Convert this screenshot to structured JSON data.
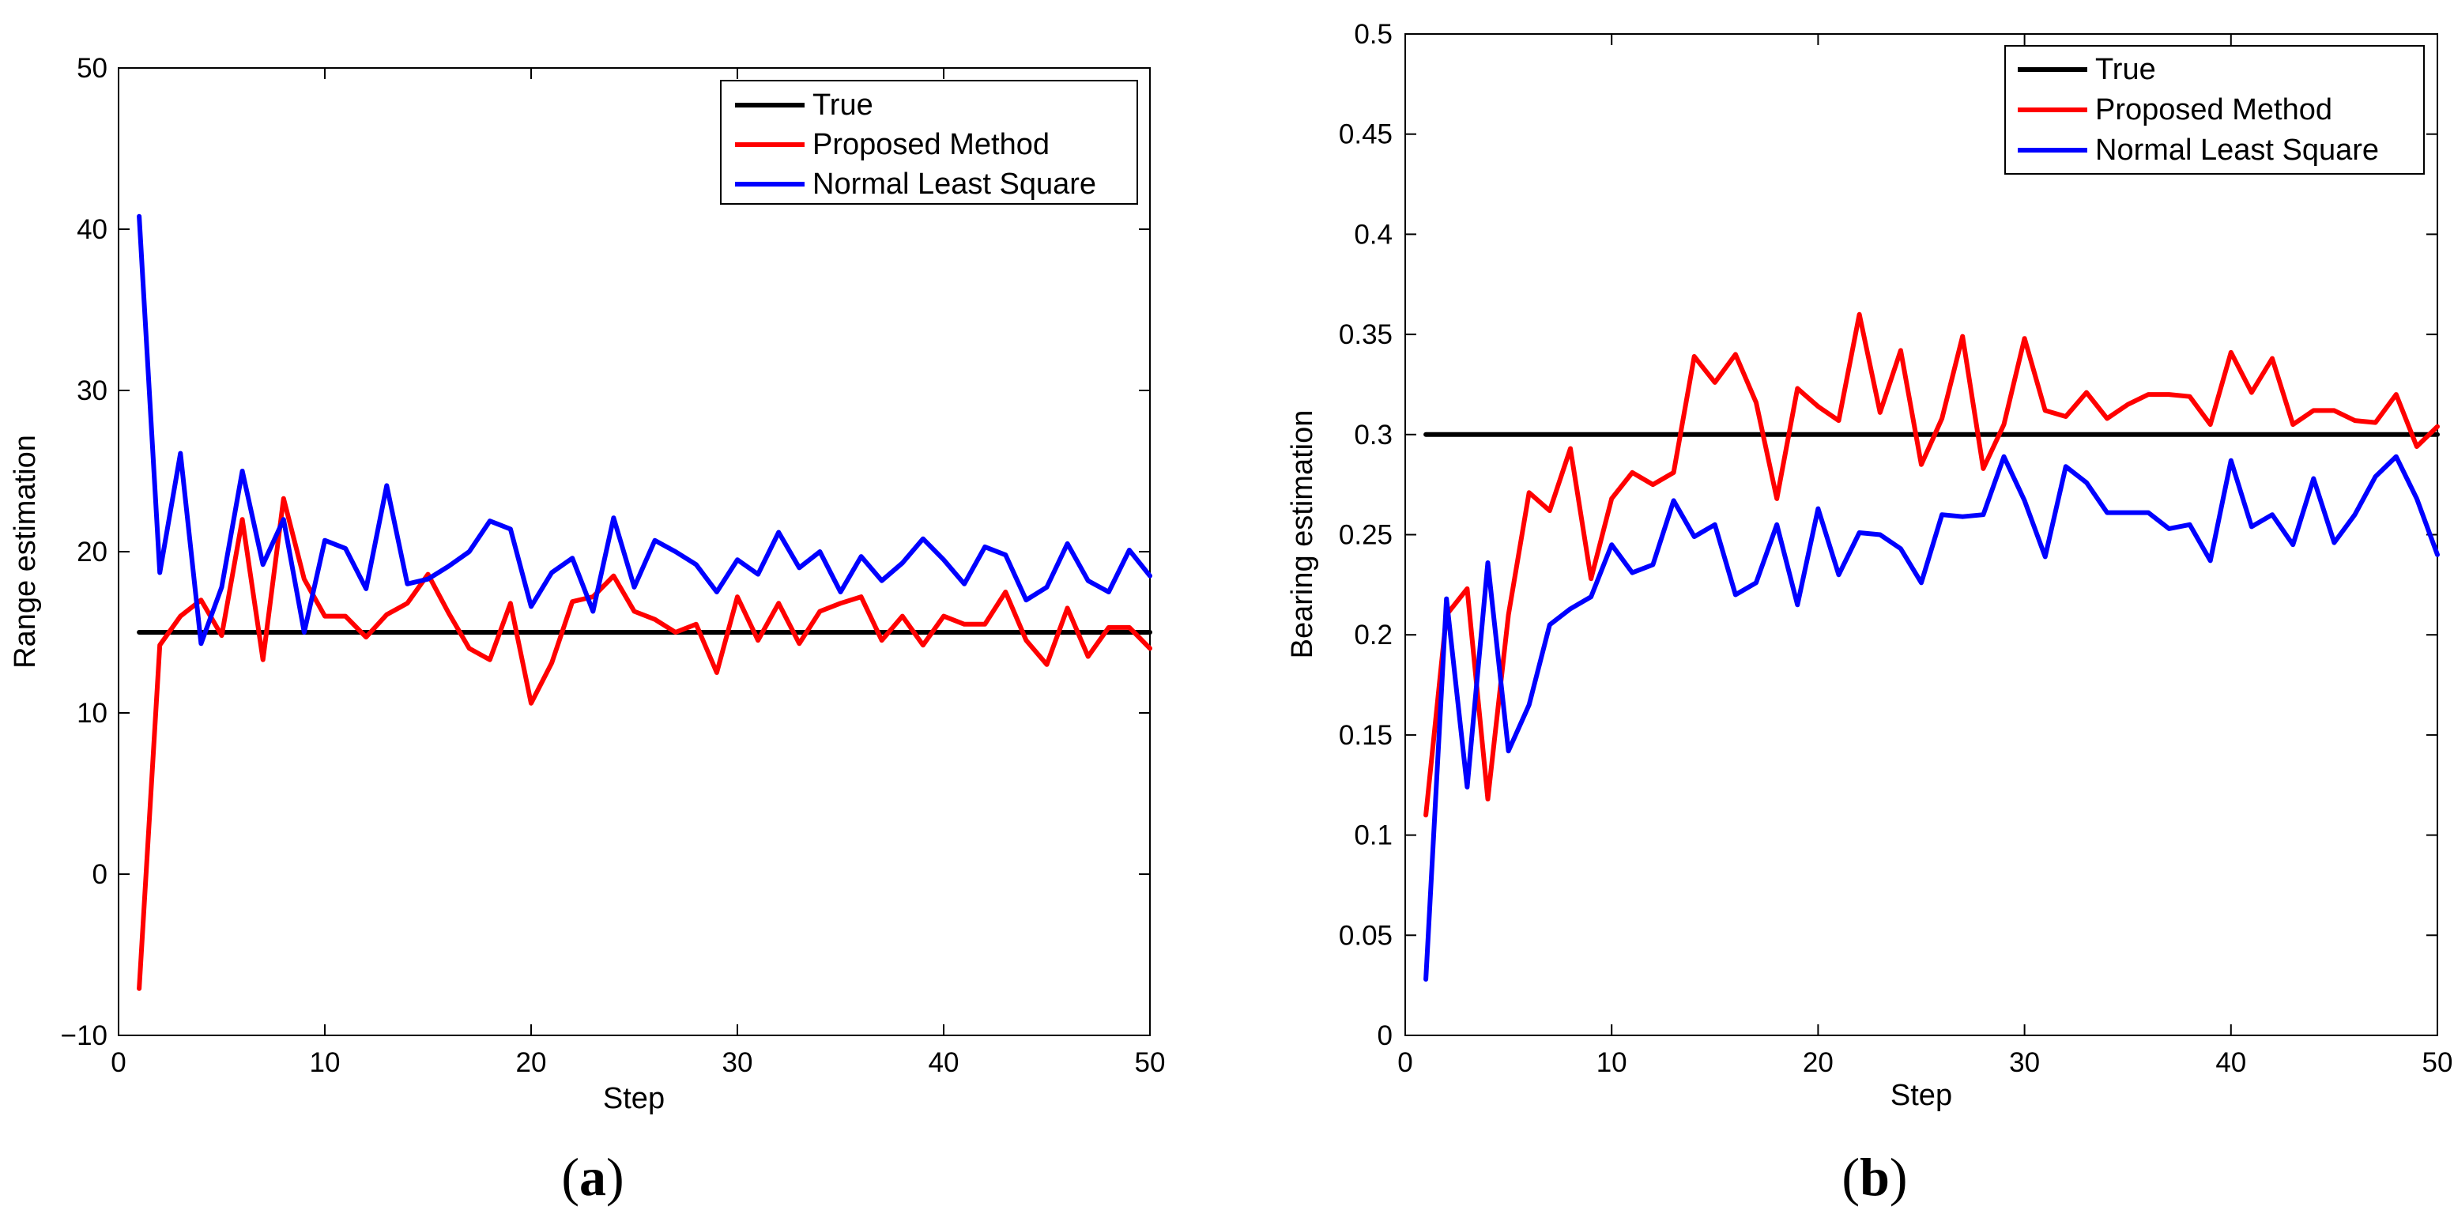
{
  "legend": {
    "true_label": "True",
    "proposed_label": "Proposed Method",
    "nls_label": "Normal Least Square"
  },
  "colors": {
    "true": "#000000",
    "proposed": "#ff0000",
    "nls": "#0000ff"
  },
  "chart_data": [
    {
      "type": "line",
      "panel_label": "a",
      "xlabel": "Step",
      "ylabel": "Range estimation",
      "xlim": [
        0,
        50
      ],
      "ylim": [
        -10,
        50
      ],
      "xticks": [
        0,
        10,
        20,
        30,
        40,
        50
      ],
      "yticks": [
        -10,
        0,
        10,
        20,
        30,
        40,
        50
      ],
      "ytick_labels": [
        "−10",
        "0",
        "10",
        "20",
        "30",
        "40",
        "50"
      ],
      "legend_position": "top-right",
      "x": [
        1,
        2,
        3,
        4,
        5,
        6,
        7,
        8,
        9,
        10,
        11,
        12,
        13,
        14,
        15,
        16,
        17,
        18,
        19,
        20,
        21,
        22,
        23,
        24,
        25,
        26,
        27,
        28,
        29,
        30,
        31,
        32,
        33,
        34,
        35,
        36,
        37,
        38,
        39,
        40,
        41,
        42,
        43,
        44,
        45,
        46,
        47,
        48,
        49,
        50
      ],
      "series": [
        {
          "name": "True",
          "color_key": "true",
          "values": [
            15,
            15,
            15,
            15,
            15,
            15,
            15,
            15,
            15,
            15,
            15,
            15,
            15,
            15,
            15,
            15,
            15,
            15,
            15,
            15,
            15,
            15,
            15,
            15,
            15,
            15,
            15,
            15,
            15,
            15,
            15,
            15,
            15,
            15,
            15,
            15,
            15,
            15,
            15,
            15,
            15,
            15,
            15,
            15,
            15,
            15,
            15,
            15,
            15,
            15
          ]
        },
        {
          "name": "Proposed Method",
          "color_key": "proposed",
          "values": [
            -7.1,
            14.2,
            16.0,
            17.0,
            14.8,
            22.0,
            13.3,
            23.3,
            18.3,
            16.0,
            16.0,
            14.7,
            16.1,
            16.8,
            18.6,
            16.2,
            14.0,
            13.3,
            16.8,
            10.6,
            13.1,
            16.9,
            17.2,
            18.5,
            16.3,
            15.8,
            15.0,
            15.5,
            12.5,
            17.2,
            14.5,
            16.8,
            14.3,
            16.3,
            16.8,
            17.2,
            14.5,
            16.0,
            14.2,
            16.0,
            15.5,
            15.5,
            17.5,
            14.5,
            13.0,
            16.5,
            13.5,
            15.3,
            15.3,
            14.0
          ]
        },
        {
          "name": "Normal Least Square",
          "color_key": "nls",
          "values": [
            40.8,
            18.7,
            26.1,
            14.3,
            17.8,
            25.0,
            19.2,
            22.0,
            15.0,
            20.7,
            20.2,
            17.7,
            24.1,
            18.0,
            18.3,
            19.1,
            20.0,
            21.9,
            21.4,
            16.6,
            18.7,
            19.6,
            16.3,
            22.1,
            17.8,
            20.7,
            20.0,
            19.2,
            17.5,
            19.5,
            18.6,
            21.2,
            19.0,
            20.0,
            17.5,
            19.7,
            18.2,
            19.3,
            20.8,
            19.5,
            18.0,
            20.3,
            19.8,
            17.0,
            17.8,
            20.5,
            18.2,
            17.5,
            20.1,
            18.5
          ]
        }
      ]
    },
    {
      "type": "line",
      "panel_label": "b",
      "xlabel": "Step",
      "ylabel": "Bearing estimation",
      "xlim": [
        0,
        50
      ],
      "ylim": [
        0,
        0.5
      ],
      "xticks": [
        0,
        10,
        20,
        30,
        40,
        50
      ],
      "yticks": [
        0,
        0.05,
        0.1,
        0.15,
        0.2,
        0.25,
        0.3,
        0.35,
        0.4,
        0.45,
        0.5
      ],
      "ytick_labels": [
        "0",
        "0.05",
        "0.1",
        "0.15",
        "0.2",
        "0.25",
        "0.3",
        "0.35",
        "0.4",
        "0.45",
        "0.5"
      ],
      "legend_position": "top-right",
      "x": [
        1,
        2,
        3,
        4,
        5,
        6,
        7,
        8,
        9,
        10,
        11,
        12,
        13,
        14,
        15,
        16,
        17,
        18,
        19,
        20,
        21,
        22,
        23,
        24,
        25,
        26,
        27,
        28,
        29,
        30,
        31,
        32,
        33,
        34,
        35,
        36,
        37,
        38,
        39,
        40,
        41,
        42,
        43,
        44,
        45,
        46,
        47,
        48,
        49,
        50
      ],
      "series": [
        {
          "name": "True",
          "color_key": "true",
          "values": [
            0.3,
            0.3,
            0.3,
            0.3,
            0.3,
            0.3,
            0.3,
            0.3,
            0.3,
            0.3,
            0.3,
            0.3,
            0.3,
            0.3,
            0.3,
            0.3,
            0.3,
            0.3,
            0.3,
            0.3,
            0.3,
            0.3,
            0.3,
            0.3,
            0.3,
            0.3,
            0.3,
            0.3,
            0.3,
            0.3,
            0.3,
            0.3,
            0.3,
            0.3,
            0.3,
            0.3,
            0.3,
            0.3,
            0.3,
            0.3,
            0.3,
            0.3,
            0.3,
            0.3,
            0.3,
            0.3,
            0.3,
            0.3,
            0.3,
            0.3
          ]
        },
        {
          "name": "Proposed Method",
          "color_key": "proposed",
          "values": [
            0.11,
            0.21,
            0.223,
            0.118,
            0.21,
            0.271,
            0.262,
            0.293,
            0.228,
            0.268,
            0.281,
            0.275,
            0.281,
            0.339,
            0.326,
            0.34,
            0.316,
            0.268,
            0.323,
            0.314,
            0.307,
            0.36,
            0.311,
            0.342,
            0.285,
            0.308,
            0.349,
            0.283,
            0.305,
            0.348,
            0.312,
            0.309,
            0.321,
            0.308,
            0.315,
            0.32,
            0.32,
            0.319,
            0.305,
            0.341,
            0.321,
            0.338,
            0.305,
            0.312,
            0.312,
            0.307,
            0.306,
            0.32,
            0.294,
            0.304
          ]
        },
        {
          "name": "Normal Least Square",
          "color_key": "nls",
          "values": [
            0.028,
            0.218,
            0.124,
            0.236,
            0.142,
            0.165,
            0.205,
            0.213,
            0.219,
            0.245,
            0.231,
            0.235,
            0.267,
            0.249,
            0.255,
            0.22,
            0.226,
            0.255,
            0.215,
            0.263,
            0.23,
            0.251,
            0.25,
            0.243,
            0.226,
            0.26,
            0.259,
            0.26,
            0.289,
            0.267,
            0.239,
            0.284,
            0.276,
            0.261,
            0.261,
            0.261,
            0.253,
            0.255,
            0.237,
            0.287,
            0.254,
            0.26,
            0.245,
            0.278,
            0.246,
            0.26,
            0.279,
            0.289,
            0.268,
            0.24
          ]
        }
      ]
    }
  ]
}
